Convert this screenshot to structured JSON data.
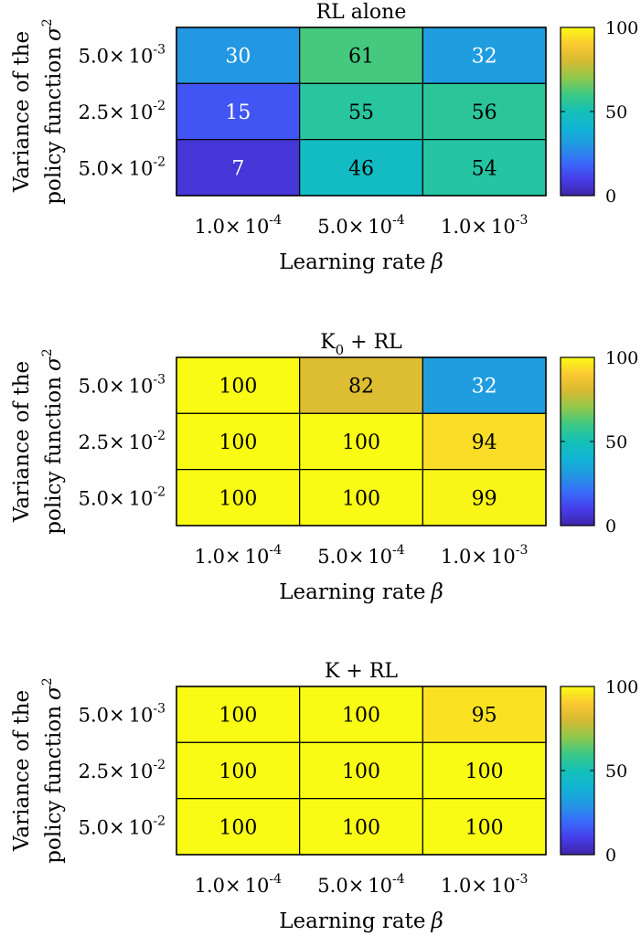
{
  "chart_data": [
    {
      "type": "heatmap",
      "title": "RL alone",
      "title_sub": "",
      "title_rest": "",
      "xlabel": "Learning rate",
      "xlabel_symbol": "β",
      "ylabel_line1": "Variance of the",
      "ylabel_line2": "policy function",
      "ylabel_symbol": "σ",
      "ylabel_sup": "2",
      "x_ticks": [
        {
          "mant": "1.0",
          "times": "×",
          "base": "10",
          "exp": "-4"
        },
        {
          "mant": "5.0",
          "times": "×",
          "base": "10",
          "exp": "-4"
        },
        {
          "mant": "1.0",
          "times": "×",
          "base": "10",
          "exp": "-3"
        }
      ],
      "y_ticks": [
        {
          "mant": "5.0",
          "times": "×",
          "base": "10",
          "exp": "-3"
        },
        {
          "mant": "2.5",
          "times": "×",
          "base": "10",
          "exp": "-2"
        },
        {
          "mant": "5.0",
          "times": "×",
          "base": "10",
          "exp": "-2"
        }
      ],
      "values": [
        [
          30,
          61,
          32
        ],
        [
          15,
          55,
          56
        ],
        [
          7,
          46,
          54
        ]
      ],
      "value_labels": [
        [
          "30",
          "61",
          "32"
        ],
        [
          "15",
          "55",
          "56"
        ],
        [
          "7",
          "46",
          "54"
        ]
      ],
      "colorbar": {
        "min": 0,
        "max": 100,
        "colormap": "parula",
        "ticks": [
          "0",
          "50",
          "100"
        ]
      }
    },
    {
      "type": "heatmap",
      "title": "K",
      "title_sub": "0",
      "title_rest": " + RL",
      "xlabel": "Learning rate",
      "xlabel_symbol": "β",
      "ylabel_line1": "Variance of the",
      "ylabel_line2": "policy function",
      "ylabel_symbol": "σ",
      "ylabel_sup": "2",
      "x_ticks": [
        {
          "mant": "1.0",
          "times": "×",
          "base": "10",
          "exp": "-4"
        },
        {
          "mant": "5.0",
          "times": "×",
          "base": "10",
          "exp": "-4"
        },
        {
          "mant": "1.0",
          "times": "×",
          "base": "10",
          "exp": "-3"
        }
      ],
      "y_ticks": [
        {
          "mant": "5.0",
          "times": "×",
          "base": "10",
          "exp": "-3"
        },
        {
          "mant": "2.5",
          "times": "×",
          "base": "10",
          "exp": "-2"
        },
        {
          "mant": "5.0",
          "times": "×",
          "base": "10",
          "exp": "-2"
        }
      ],
      "values": [
        [
          100,
          82,
          32
        ],
        [
          100,
          100,
          94
        ],
        [
          100,
          100,
          99
        ]
      ],
      "value_labels": [
        [
          "100",
          "82",
          "32"
        ],
        [
          "100",
          "100",
          "94"
        ],
        [
          "100",
          "100",
          "99"
        ]
      ],
      "colorbar": {
        "min": 0,
        "max": 100,
        "colormap": "parula",
        "ticks": [
          "0",
          "50",
          "100"
        ]
      }
    },
    {
      "type": "heatmap",
      "title": "K + RL",
      "title_sub": "",
      "title_rest": "",
      "xlabel": "Learning rate",
      "xlabel_symbol": "β",
      "ylabel_line1": "Variance of the",
      "ylabel_line2": "policy function",
      "ylabel_symbol": "σ",
      "ylabel_sup": "2",
      "x_ticks": [
        {
          "mant": "1.0",
          "times": "×",
          "base": "10",
          "exp": "-4"
        },
        {
          "mant": "5.0",
          "times": "×",
          "base": "10",
          "exp": "-4"
        },
        {
          "mant": "1.0",
          "times": "×",
          "base": "10",
          "exp": "-3"
        }
      ],
      "y_ticks": [
        {
          "mant": "5.0",
          "times": "×",
          "base": "10",
          "exp": "-3"
        },
        {
          "mant": "2.5",
          "times": "×",
          "base": "10",
          "exp": "-2"
        },
        {
          "mant": "5.0",
          "times": "×",
          "base": "10",
          "exp": "-2"
        }
      ],
      "values": [
        [
          100,
          100,
          95
        ],
        [
          100,
          100,
          100
        ],
        [
          100,
          100,
          100
        ]
      ],
      "value_labels": [
        [
          "100",
          "100",
          "95"
        ],
        [
          "100",
          "100",
          "100"
        ],
        [
          "100",
          "100",
          "100"
        ]
      ],
      "colorbar": {
        "min": 0,
        "max": 100,
        "colormap": "parula",
        "ticks": [
          "0",
          "50",
          "100"
        ]
      }
    }
  ]
}
